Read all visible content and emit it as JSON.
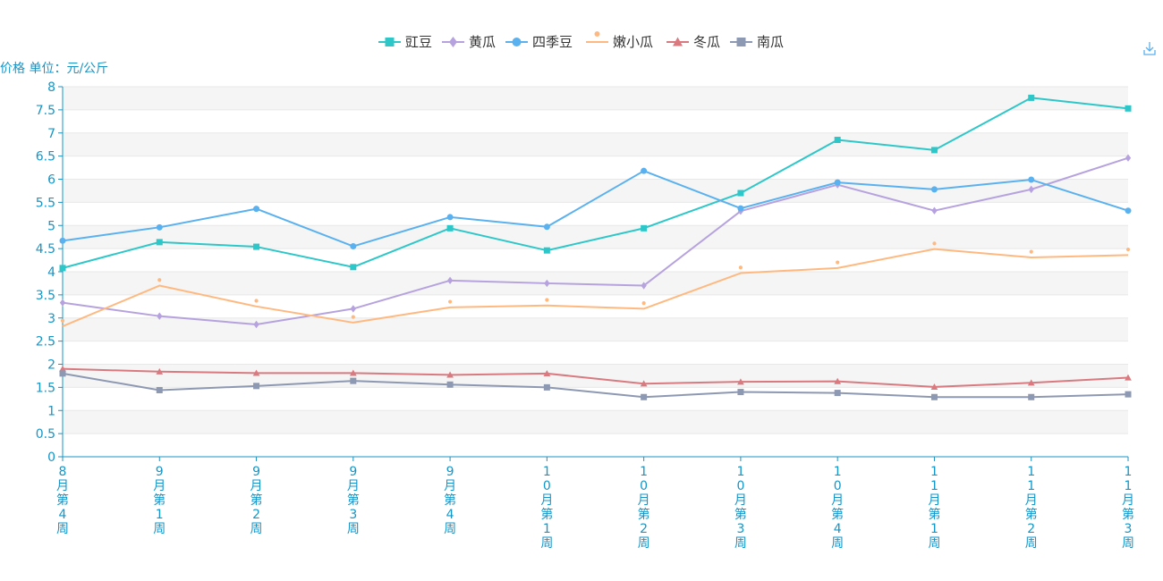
{
  "chart_data": {
    "type": "line",
    "ylabel": "价格 单位：元/公斤",
    "ylim": [
      0,
      8
    ],
    "y_ticks": [
      "0",
      "0.5",
      "1",
      "1.5",
      "2",
      "2.5",
      "3",
      "3.5",
      "4",
      "4.5",
      "5",
      "5.5",
      "6",
      "6.5",
      "7",
      "7.5",
      "8"
    ],
    "y_tick_values": [
      0,
      0.5,
      1,
      1.5,
      2,
      2.5,
      3,
      3.5,
      4,
      4.5,
      5,
      5.5,
      6,
      6.5,
      7,
      7.5,
      8
    ],
    "categories": [
      "8月第4周",
      "9月第1周",
      "9月第2周",
      "9月第3周",
      "9月第4周",
      "10月第1周",
      "10月第2周",
      "10月第3周",
      "10月第4周",
      "11月第1周",
      "11月第2周",
      "11月第3周"
    ],
    "grid": true,
    "legend_position": "top-center",
    "series": [
      {
        "name": "豇豆",
        "color": "#2ec7c9",
        "symbol": "square",
        "values": [
          4.08,
          4.64,
          4.54,
          4.1,
          4.94,
          4.46,
          4.94,
          5.7,
          6.85,
          6.63,
          7.76,
          7.53
        ]
      },
      {
        "name": "黄瓜",
        "color": "#b6a2de",
        "symbol": "diamond",
        "values": [
          3.33,
          3.04,
          2.86,
          3.2,
          3.81,
          3.75,
          3.7,
          5.31,
          5.88,
          5.32,
          5.78,
          6.46
        ]
      },
      {
        "name": "四季豆",
        "color": "#5ab1ef",
        "symbol": "circle",
        "values": [
          4.67,
          4.96,
          5.36,
          4.55,
          5.18,
          4.97,
          6.18,
          5.37,
          5.93,
          5.78,
          5.99,
          5.32
        ]
      },
      {
        "name": "嫩小瓜",
        "color": "#ffb980",
        "symbol": "pin",
        "values": [
          2.82,
          3.7,
          3.25,
          2.9,
          3.23,
          3.27,
          3.2,
          3.97,
          4.08,
          4.49,
          4.31,
          4.36
        ]
      },
      {
        "name": "冬瓜",
        "color": "#d87a80",
        "symbol": "triangle",
        "values": [
          1.9,
          1.84,
          1.81,
          1.81,
          1.77,
          1.8,
          1.58,
          1.62,
          1.63,
          1.51,
          1.6,
          1.71
        ]
      },
      {
        "name": "南瓜",
        "color": "#8d98b3",
        "symbol": "square",
        "values": [
          1.8,
          1.44,
          1.53,
          1.64,
          1.56,
          1.5,
          1.29,
          1.4,
          1.38,
          1.29,
          1.29,
          1.35
        ]
      }
    ]
  },
  "colors": {
    "axis": "#1496c8",
    "grid_band": "#f5f5f5",
    "grid_line": "#e8e8e8"
  },
  "toolbox": {
    "download_icon": "download-icon"
  }
}
